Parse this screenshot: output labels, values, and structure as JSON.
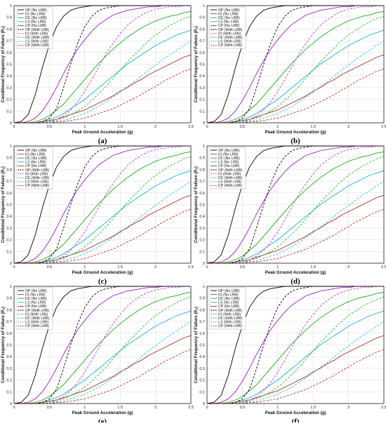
{
  "figure": {
    "panel_labels": [
      "(a)",
      "(b)",
      "(c)",
      "(d)",
      "(e)",
      "(f)"
    ]
  },
  "chart_data": {
    "type": "line",
    "panels": [
      "(a)",
      "(b)",
      "(c)",
      "(d)",
      "(e)",
      "(f)"
    ],
    "xlabel": "Peak Ground Acceleration (g)",
    "ylabel": "Conditional Frequency of Failure (Pₑ)",
    "xlim": [
      0,
      2.5
    ],
    "ylim": [
      0,
      1
    ],
    "xticks": [
      0,
      0.5,
      1,
      1.5,
      2,
      2.5
    ],
    "xtick_labels": [
      "0",
      "0.5",
      "1",
      "1.5",
      "2",
      "2.5"
    ],
    "yticks": [
      0,
      0.1,
      0.2,
      0.3,
      0.4,
      0.5,
      0.6,
      0.7,
      0.8,
      0.9,
      1
    ],
    "ytick_labels": [
      "0",
      "0.1",
      "0.2",
      "0.3",
      "0.4",
      "0.5",
      "0.6",
      "0.7",
      "0.8",
      "0.9",
      "1"
    ],
    "grid": true,
    "legend_position": "top-left",
    "x": [
      0,
      0.1,
      0.2,
      0.3,
      0.4,
      0.5,
      0.6,
      0.7,
      0.8,
      0.9,
      1.0,
      1.1,
      1.2,
      1.3,
      1.4,
      1.5,
      1.6,
      1.7,
      1.8,
      1.9,
      2.0,
      2.1,
      2.2,
      2.3,
      2.4,
      2.5
    ],
    "series": [
      {
        "name": "OP (No LRB)",
        "color": "#000000",
        "dash": false,
        "values": [
          0,
          0.01,
          0.07,
          0.24,
          0.47,
          0.67,
          0.82,
          0.91,
          0.96,
          0.98,
          0.99,
          1,
          1,
          1,
          1,
          1,
          1,
          1,
          1,
          1,
          1,
          1,
          1,
          1,
          1,
          1
        ]
      },
      {
        "name": "IO (No LRB)",
        "color": "#a020c8",
        "dash": false,
        "values": [
          0,
          0,
          0.01,
          0.04,
          0.1,
          0.19,
          0.3,
          0.42,
          0.53,
          0.63,
          0.71,
          0.78,
          0.84,
          0.88,
          0.92,
          0.94,
          0.96,
          0.97,
          0.98,
          0.99,
          0.99,
          1,
          1,
          1,
          1,
          1
        ]
      },
      {
        "name": "DC (No LRB)",
        "color": "#1faa1f",
        "dash": false,
        "values": [
          0,
          0,
          0,
          0.01,
          0.03,
          0.06,
          0.11,
          0.16,
          0.23,
          0.3,
          0.37,
          0.44,
          0.51,
          0.57,
          0.63,
          0.68,
          0.73,
          0.77,
          0.81,
          0.84,
          0.87,
          0.89,
          0.91,
          0.92,
          0.94,
          0.95
        ]
      },
      {
        "name": "LS (No LRB)",
        "color": "#1fb0d8",
        "dash": false,
        "values": [
          0,
          0,
          0,
          0,
          0.01,
          0.03,
          0.05,
          0.08,
          0.12,
          0.16,
          0.2,
          0.25,
          0.3,
          0.35,
          0.4,
          0.45,
          0.5,
          0.54,
          0.58,
          0.62,
          0.66,
          0.69,
          0.72,
          0.75,
          0.77,
          0.79
        ]
      },
      {
        "name": "CP (No LRB)",
        "color": "#b02a1a",
        "dash": false,
        "values": [
          0,
          0,
          0,
          0,
          0.01,
          0.02,
          0.03,
          0.05,
          0.07,
          0.09,
          0.11,
          0.14,
          0.17,
          0.2,
          0.23,
          0.27,
          0.3,
          0.34,
          0.37,
          0.41,
          0.44,
          0.47,
          0.5,
          0.53,
          0.56,
          0.58
        ]
      },
      {
        "name": "OP (With LRB)",
        "color": "#000000",
        "dash": true,
        "values": [
          0,
          0,
          0,
          0,
          0.01,
          0.04,
          0.12,
          0.3,
          0.5,
          0.68,
          0.82,
          0.91,
          0.96,
          0.98,
          0.99,
          1,
          1,
          1,
          1,
          1,
          1,
          1,
          1,
          1,
          1,
          1
        ]
      },
      {
        "name": "IO (With LRB)",
        "color": "#c040d8",
        "dash": true,
        "values": [
          0,
          0,
          0,
          0,
          0,
          0.01,
          0.03,
          0.06,
          0.11,
          0.18,
          0.27,
          0.37,
          0.48,
          0.59,
          0.68,
          0.76,
          0.83,
          0.88,
          0.92,
          0.95,
          0.97,
          0.98,
          0.99,
          0.99,
          1,
          1
        ]
      },
      {
        "name": "DC (With LRB)",
        "color": "#2fbf2f",
        "dash": true,
        "values": [
          0,
          0,
          0,
          0,
          0,
          0.01,
          0.02,
          0.04,
          0.07,
          0.1,
          0.14,
          0.19,
          0.25,
          0.31,
          0.38,
          0.45,
          0.52,
          0.58,
          0.64,
          0.7,
          0.75,
          0.79,
          0.83,
          0.86,
          0.89,
          0.91
        ]
      },
      {
        "name": "LS (With LRB)",
        "color": "#2ec0e8",
        "dash": true,
        "values": [
          0,
          0,
          0,
          0,
          0,
          0.01,
          0.01,
          0.02,
          0.04,
          0.06,
          0.08,
          0.11,
          0.14,
          0.18,
          0.22,
          0.26,
          0.31,
          0.35,
          0.4,
          0.45,
          0.49,
          0.54,
          0.58,
          0.62,
          0.66,
          0.7
        ]
      },
      {
        "name": "CP (With LRB)",
        "color": "#d03020",
        "dash": true,
        "values": [
          0,
          0,
          0,
          0,
          0,
          0,
          0.01,
          0.01,
          0.02,
          0.03,
          0.04,
          0.06,
          0.08,
          0.1,
          0.12,
          0.15,
          0.18,
          0.21,
          0.24,
          0.28,
          0.31,
          0.35,
          0.38,
          0.41,
          0.44,
          0.46
        ]
      }
    ]
  }
}
